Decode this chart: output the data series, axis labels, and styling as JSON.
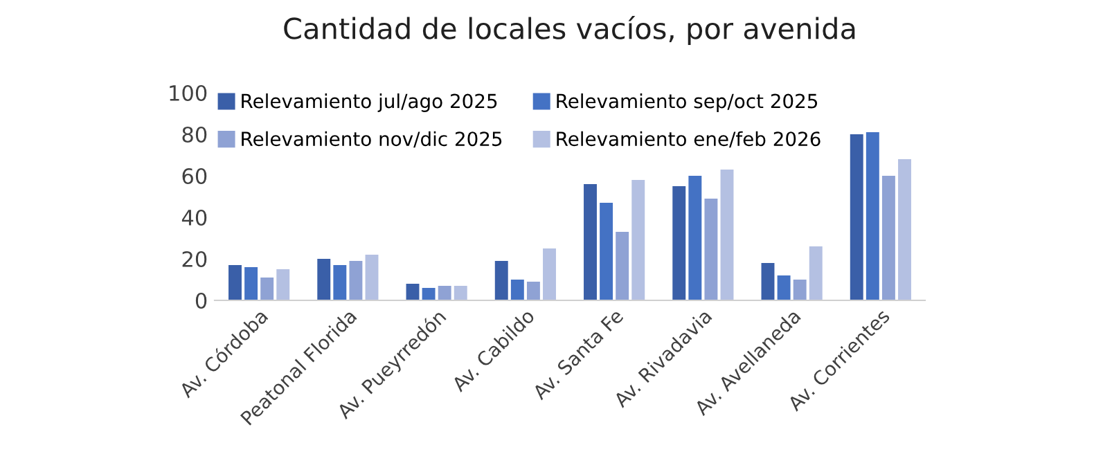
{
  "chart_data": {
    "type": "bar",
    "title": "Cantidad de locales vacíos, por avenida",
    "categories": [
      "Av. Córdoba",
      "Peatonal Florida",
      "Av. Pueyrredón",
      "Av. Cabildo",
      "Av. Santa Fe",
      "Av. Rivadavia",
      "Av. Avellaneda",
      "Av. Corrientes"
    ],
    "series": [
      {
        "name": "Relevamiento jul/ago 2025",
        "color": "#3a5fa8",
        "values": [
          17,
          20,
          8,
          19,
          56,
          55,
          18,
          80
        ]
      },
      {
        "name": "Relevamiento sep/oct 2025",
        "color": "#4472c4",
        "values": [
          16,
          17,
          6,
          10,
          47,
          60,
          12,
          81
        ]
      },
      {
        "name": "Relevamiento nov/dic 2025",
        "color": "#8fa2d4",
        "values": [
          11,
          19,
          7,
          9,
          33,
          49,
          10,
          60
        ]
      },
      {
        "name": "Relevamiento ene/feb 2026",
        "color": "#b4c0e2",
        "values": [
          15,
          22,
          7,
          25,
          58,
          63,
          26,
          68
        ]
      }
    ],
    "ylim": [
      0,
      100
    ],
    "yticks": [
      0,
      20,
      40,
      60,
      80,
      100
    ],
    "grid": false,
    "legend": "top"
  }
}
